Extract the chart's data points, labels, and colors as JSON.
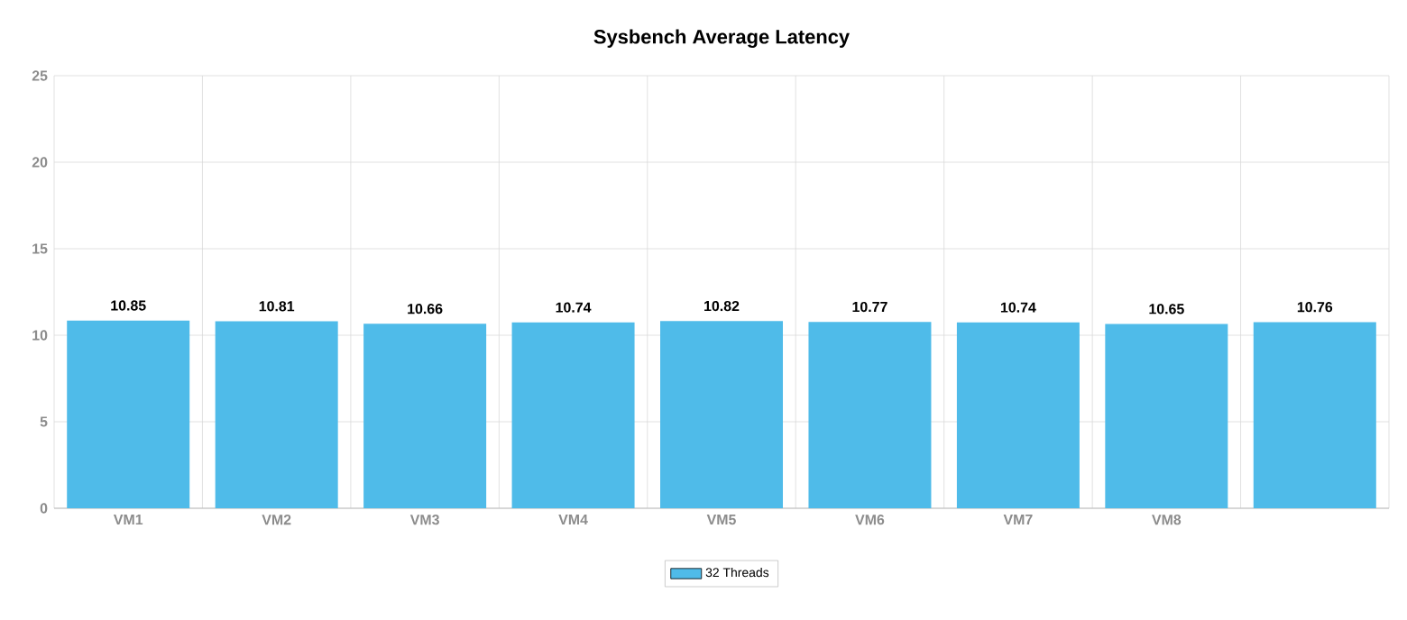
{
  "chart_data": {
    "type": "bar",
    "title": "Sysbench Average Latency",
    "categories": [
      "VM1",
      "VM2",
      "VM3",
      "VM4",
      "VM5",
      "VM6",
      "VM7",
      "VM8",
      null
    ],
    "series": [
      {
        "name": "32 Threads",
        "color": "#4fbbe9",
        "values": [
          10.85,
          10.81,
          10.66,
          10.74,
          10.82,
          10.77,
          10.74,
          10.65,
          10.76
        ]
      }
    ],
    "ylim": [
      0,
      25
    ],
    "yticks": [
      0,
      5,
      10,
      15,
      20,
      25
    ],
    "grid": true,
    "data_labels": true,
    "legend": "bottom"
  }
}
